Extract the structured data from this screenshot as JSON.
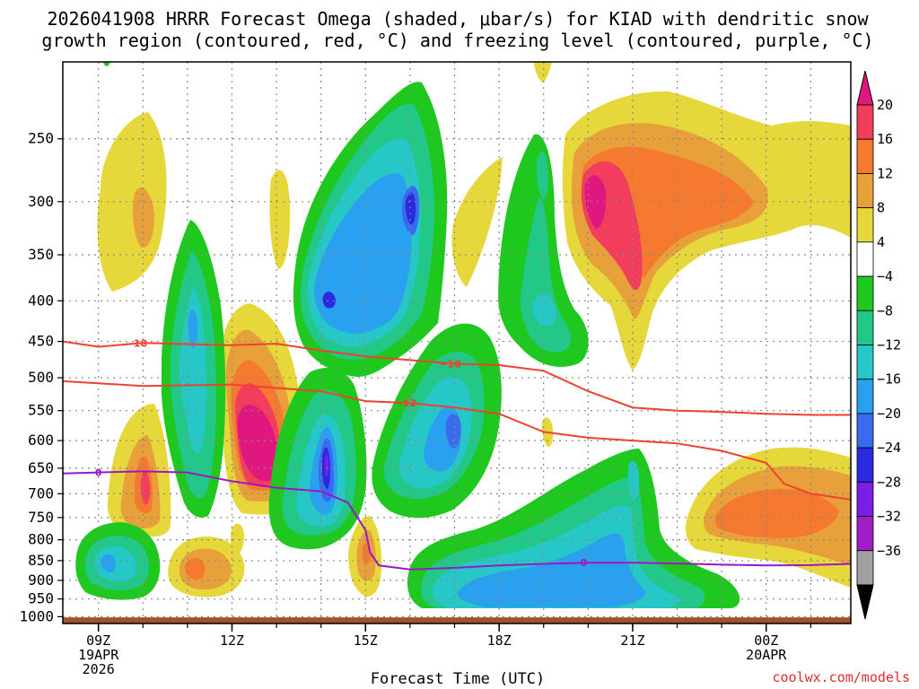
{
  "chart_data": {
    "type": "heatmap",
    "title_line1": "2026041908 HRRR Forecast Omega (shaded, μbar/s) for KIAD with dendritic snow",
    "title_line2": "growth region (contoured, red, °C) and freezing level (contoured, purple, °C)",
    "xlabel": "Forecast Time (UTC)",
    "credit": "coolwx.com/models",
    "y_ticks": [
      "250",
      "300",
      "350",
      "400",
      "450",
      "500",
      "550",
      "600",
      "650",
      "700",
      "750",
      "800",
      "850",
      "900",
      "950",
      "1000"
    ],
    "x_ticks": [
      {
        "hour": 9,
        "label": "09Z",
        "sub1": "19APR",
        "sub2": "2026"
      },
      {
        "hour": 12,
        "label": "12Z",
        "sub1": "",
        "sub2": ""
      },
      {
        "hour": 15,
        "label": "15Z",
        "sub1": "",
        "sub2": ""
      },
      {
        "hour": 18,
        "label": "18Z",
        "sub1": "",
        "sub2": ""
      },
      {
        "hour": 21,
        "label": "21Z",
        "sub1": "",
        "sub2": ""
      },
      {
        "hour": 24,
        "label": "00Z",
        "sub1": "20APR",
        "sub2": ""
      }
    ],
    "x_range_hours": [
      8.2,
      25.9
    ],
    "y_range_hpa": [
      200,
      1020
    ],
    "colorbar": {
      "labels": [
        "20",
        "16",
        "12",
        "8",
        "4",
        "−4",
        "−8",
        "−12",
        "−16",
        "−20",
        "−24",
        "−28",
        "−32",
        "−36"
      ],
      "colors": [
        "#f23d5c",
        "#f57a30",
        "#e8a03a",
        "#e6d83a",
        "#ffffff",
        "#1ec81e",
        "#22c888",
        "#25c7c7",
        "#2aa0f0",
        "#3a6af0",
        "#2a2ae0",
        "#7a1ee6",
        "#a01ec8",
        "#a0a0a0"
      ],
      "top_color": "#e0177f",
      "bottom_color": "#000000"
    },
    "contour_labels": {
      "minus18": "−18",
      "minus12": "−12",
      "zero": "0"
    },
    "contours": {
      "minus18": [
        [
          8.2,
          450
        ],
        [
          9,
          457
        ],
        [
          10,
          452
        ],
        [
          12,
          455
        ],
        [
          13,
          453
        ],
        [
          14,
          462
        ],
        [
          15,
          470
        ],
        [
          16,
          475
        ],
        [
          17,
          480
        ],
        [
          18,
          482
        ],
        [
          19,
          490
        ],
        [
          20,
          520
        ],
        [
          21,
          545
        ],
        [
          22,
          550
        ],
        [
          23,
          552
        ],
        [
          24,
          555
        ],
        [
          25,
          557
        ],
        [
          25.9,
          557
        ]
      ],
      "minus12": [
        [
          8.2,
          505
        ],
        [
          10,
          512
        ],
        [
          12,
          510
        ],
        [
          14,
          520
        ],
        [
          15,
          535
        ],
        [
          16,
          538
        ],
        [
          17,
          545
        ],
        [
          18,
          555
        ],
        [
          19,
          585
        ],
        [
          20,
          595
        ],
        [
          21,
          600
        ],
        [
          22,
          605
        ],
        [
          23,
          618
        ],
        [
          24,
          640
        ],
        [
          24.4,
          680
        ],
        [
          25,
          700
        ],
        [
          25.9,
          712
        ]
      ],
      "zero": [
        [
          8.2,
          660
        ],
        [
          9,
          658
        ],
        [
          10,
          656
        ],
        [
          11,
          658
        ],
        [
          12,
          675
        ],
        [
          13,
          688
        ],
        [
          14,
          695
        ],
        [
          14.6,
          718
        ],
        [
          15,
          778
        ],
        [
          15.1,
          830
        ],
        [
          15.3,
          862
        ],
        [
          16,
          872
        ],
        [
          17,
          868
        ],
        [
          18,
          862
        ],
        [
          19,
          858
        ],
        [
          20,
          855
        ],
        [
          21,
          855
        ],
        [
          22,
          857
        ],
        [
          23,
          860
        ],
        [
          24,
          862
        ],
        [
          25,
          861
        ],
        [
          25.9,
          858
        ]
      ]
    },
    "omega_cells": [
      {
        "hour": 9.5,
        "hpa": 700,
        "value": 14
      },
      {
        "hour": 12.5,
        "hpa": 620,
        "value": 22
      },
      {
        "hour": 20.6,
        "hpa": 310,
        "value": 20
      },
      {
        "hour": 24.8,
        "hpa": 760,
        "value": 12
      },
      {
        "hour": 10.9,
        "hpa": 900,
        "value": 12
      },
      {
        "hour": 14.9,
        "hpa": 870,
        "value": 12
      },
      {
        "hour": 9.8,
        "hpa": 320,
        "value": 8
      },
      {
        "hour": 16.0,
        "hpa": 350,
        "value": -22
      },
      {
        "hour": 14.0,
        "hpa": 660,
        "value": -26
      },
      {
        "hour": 16.9,
        "hpa": 600,
        "value": -22
      },
      {
        "hour": 11.0,
        "hpa": 440,
        "value": -14
      },
      {
        "hour": 19.0,
        "hpa": 300,
        "value": -12
      },
      {
        "hour": 19.2,
        "hpa": 420,
        "value": -12
      },
      {
        "hour": 19.0,
        "hpa": 900,
        "value": -17
      },
      {
        "hour": 8.9,
        "hpa": 890,
        "value": -14
      }
    ],
    "ground_color": "#a0522d"
  }
}
